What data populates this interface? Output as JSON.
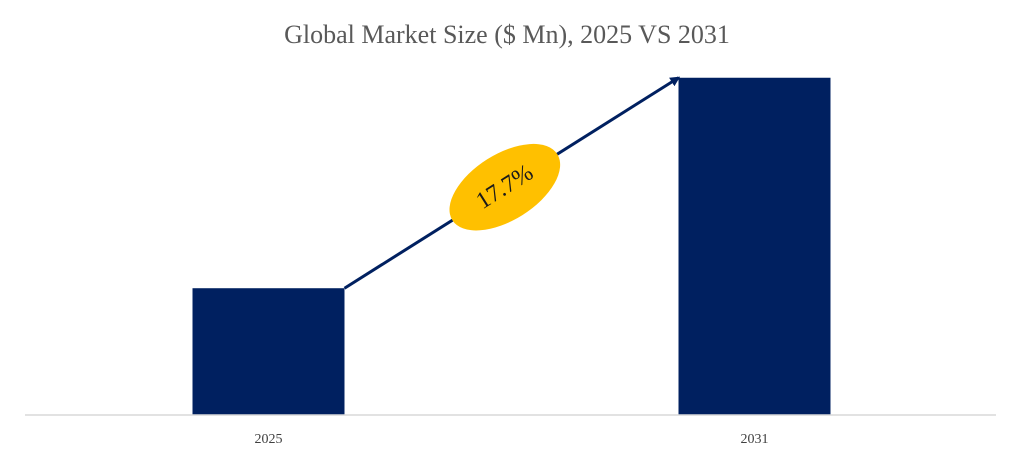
{
  "chart_data": {
    "type": "bar",
    "title": "Global Market Size ($ Mn), 2025 VS 2031",
    "categories": [
      "2025",
      "2031"
    ],
    "values": [
      100,
      266
    ],
    "xlabel": "",
    "ylabel": "",
    "ylim": [
      0,
      280
    ],
    "grid": false,
    "legend": "none",
    "annotation": {
      "type": "growth-arrow",
      "label": "17.7%",
      "from": "2025",
      "to": "2031"
    }
  },
  "colors": {
    "bar": "#002060",
    "arrow": "#002060",
    "badge": "#FFC000",
    "axis": "#D9D9D9"
  }
}
